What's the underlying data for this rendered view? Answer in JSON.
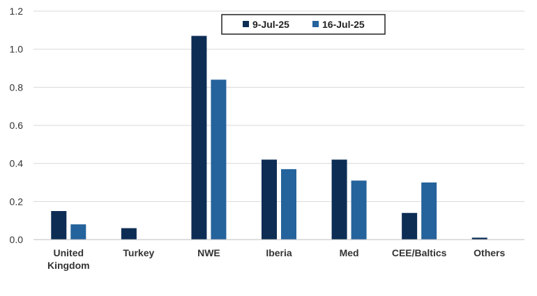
{
  "chart_data": {
    "type": "bar",
    "title": "",
    "xlabel": "",
    "ylabel": "",
    "ylim": [
      0,
      1.2
    ],
    "yticks": [
      "0.0",
      "0.2",
      "0.4",
      "0.6",
      "0.8",
      "1.0",
      "1.2"
    ],
    "grid": true,
    "legend_position": "top-right",
    "categories": [
      [
        "United",
        "Kingdom"
      ],
      [
        "Turkey"
      ],
      [
        "NWE"
      ],
      [
        "Iberia"
      ],
      [
        "Med"
      ],
      [
        "CEE/Baltics"
      ],
      [
        "Others"
      ]
    ],
    "series": [
      {
        "name": "9-Jul-25",
        "color": "#0d2d55",
        "values": [
          0.15,
          0.06,
          1.07,
          0.42,
          0.42,
          0.14,
          0.01
        ]
      },
      {
        "name": "16-Jul-25",
        "color": "#25639c",
        "values": [
          0.08,
          0.0,
          0.84,
          0.37,
          0.31,
          0.3,
          0.0
        ]
      }
    ]
  }
}
